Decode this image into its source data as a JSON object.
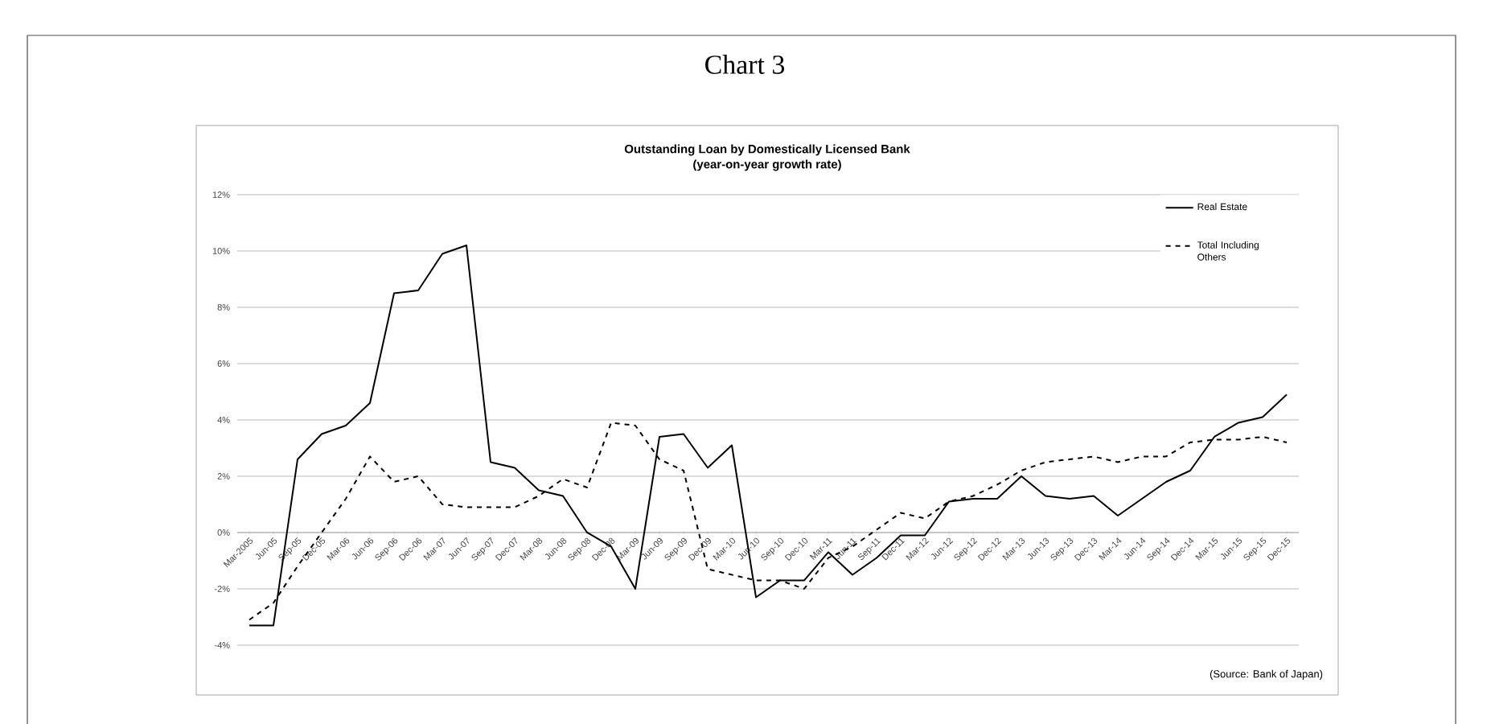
{
  "chart_data": {
    "type": "line",
    "title": "Chart 3",
    "subtitle": "Outstanding Loan by Domestically Licensed Bank",
    "annotations": [
      "(year-on-year growth rate)",
      "(Source: Bank of Japan)"
    ],
    "categories": [
      "Mar-2005",
      "Jun-05",
      "Sep-05",
      "Dec-05",
      "Mar-06",
      "Jun-06",
      "Sep-06",
      "Dec-06",
      "Mar-07",
      "Jun-07",
      "Sep-07",
      "Dec-07",
      "Mar-08",
      "Jun-08",
      "Sep-08",
      "Dec-08",
      "Mar-09",
      "Jun-09",
      "Sep-09",
      "Dec-09",
      "Mar-10",
      "Jun-10",
      "Sep-10",
      "Dec-10",
      "Mar-11",
      "Jun-11",
      "Sep-11",
      "Dec-11",
      "Mar-12",
      "Jun-12",
      "Sep-12",
      "Dec-12",
      "Mar-13",
      "Jun-13",
      "Sep-13",
      "Dec-13",
      "Mar-14",
      "Jun-14",
      "Sep-14",
      "Dec-14",
      "Mar-15",
      "Jun-15",
      "Sep-15",
      "Dec-15"
    ],
    "series": [
      {
        "name": "Real Estate",
        "color": "#000000",
        "line_style": "solid",
        "values": [
          -3.3,
          -3.3,
          2.6,
          3.5,
          3.8,
          4.6,
          8.5,
          8.6,
          9.9,
          10.2,
          2.5,
          2.3,
          1.5,
          1.3,
          0.0,
          -0.5,
          -2.0,
          3.4,
          3.5,
          2.3,
          3.1,
          -2.3,
          -1.7,
          -1.7,
          -0.7,
          -1.5,
          -0.9,
          -0.1,
          -0.1,
          1.1,
          1.2,
          1.2,
          2.0,
          1.3,
          1.2,
          1.3,
          0.6,
          1.2,
          1.8,
          2.2,
          3.4,
          3.9,
          4.1,
          4.9
        ]
      },
      {
        "name": "Total Including Others",
        "color": "#000000",
        "line_style": "dashed",
        "values": [
          -3.1,
          -2.5,
          -1.2,
          0.0,
          1.2,
          2.7,
          1.8,
          2.0,
          1.0,
          0.9,
          0.9,
          0.9,
          1.3,
          1.9,
          1.6,
          3.9,
          3.8,
          2.6,
          2.2,
          -1.3,
          -1.5,
          -1.7,
          -1.7,
          -2.0,
          -0.9,
          -0.5,
          0.1,
          0.7,
          0.5,
          1.1,
          1.3,
          1.7,
          2.2,
          2.5,
          2.6,
          2.7,
          2.5,
          2.7,
          2.7,
          3.2,
          3.3,
          3.3,
          3.4,
          3.2
        ]
      }
    ],
    "ylim": [
      -4,
      12
    ],
    "yticks": [
      {
        "value": -4,
        "label": "-4%"
      },
      {
        "value": -2,
        "label": "-2%"
      },
      {
        "value": 0,
        "label": "0%"
      },
      {
        "value": 2,
        "label": "2%"
      },
      {
        "value": 4,
        "label": "4%"
      },
      {
        "value": 6,
        "label": "6%"
      },
      {
        "value": 8,
        "label": "8%"
      },
      {
        "value": 10,
        "label": "10%"
      },
      {
        "value": 12,
        "label": "12%"
      }
    ],
    "grid": "y",
    "legend": "top right"
  }
}
